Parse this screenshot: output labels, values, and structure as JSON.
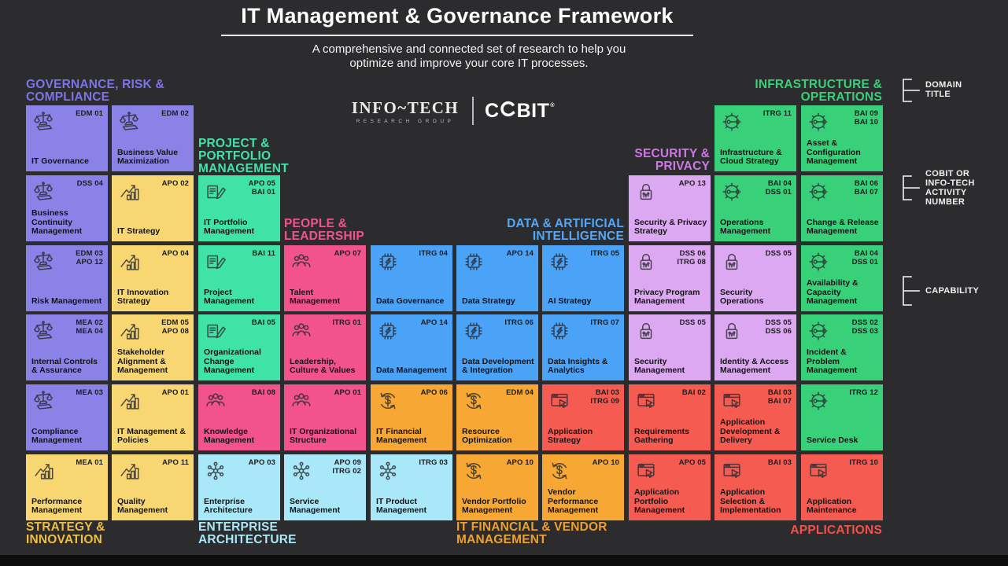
{
  "title": "IT Management & Governance Framework",
  "subtitle": "A comprehensive and connected set of research to help you\noptimize and improve your core IT processes.",
  "logos": {
    "infotech": "INFO~TECH",
    "infotech_sub": "RESEARCH GROUP",
    "cobit": "COBIT",
    "cobit_mark": "®"
  },
  "palette": {
    "grc": {
      "tile": "#8b82e8",
      "header": "#7f73e8"
    },
    "strategy": {
      "tile": "#f8d773",
      "header": "#eebf41"
    },
    "ppm": {
      "tile": "#3fe3a5",
      "header": "#3fe3a5"
    },
    "people": {
      "tile": "#f2538d",
      "header": "#f2538d"
    },
    "data": {
      "tile": "#4aa3f7",
      "header": "#54a8f7"
    },
    "security": {
      "tile": "#dda8f2",
      "header": "#cf77e6"
    },
    "infra": {
      "tile": "#38d078",
      "header": "#38d078"
    },
    "finvendor": {
      "tile": "#f7a733",
      "header": "#efa02a"
    },
    "apps": {
      "tile": "#f65b51",
      "header": "#f5504a"
    },
    "ea": {
      "tile": "#a9e8f8",
      "header": "#a9e8f8"
    }
  },
  "domains": [
    {
      "key": "grc",
      "label": "GOVERNANCE, RISK &\nCOMPLIANCE"
    },
    {
      "key": "ppm",
      "label": "PROJECT &\nPORTFOLIO\nMANAGEMENT"
    },
    {
      "key": "people",
      "label": "PEOPLE &\nLEADERSHIP"
    },
    {
      "key": "data",
      "label": "DATA & ARTIFICIAL\nINTELLIGENCE"
    },
    {
      "key": "security",
      "label": "SECURITY &\nPRIVACY"
    },
    {
      "key": "infra",
      "label": "INFRASTRUCTURE &\nOPERATIONS"
    },
    {
      "key": "strategy",
      "label": "STRATEGY &\nINNOVATION"
    },
    {
      "key": "ea",
      "label": "ENTERPRISE\nARCHITECTURE"
    },
    {
      "key": "finvendor",
      "label": "IT FINANCIAL & VENDOR\nMANAGEMENT"
    },
    {
      "key": "apps",
      "label": "APPLICATIONS"
    }
  ],
  "legend": [
    {
      "label": "DOMAIN\nTITLE"
    },
    {
      "label": "COBIT OR\nINFO-TECH\nACTIVITY\nNUMBER"
    },
    {
      "label": "CAPABILITY"
    }
  ],
  "tiles": [
    {
      "row": 1,
      "col": 1,
      "domain": "grc",
      "icon": "scales-icon",
      "numbers": [
        "EDM 01"
      ],
      "label": "IT Governance"
    },
    {
      "row": 1,
      "col": 2,
      "domain": "grc",
      "icon": "scales-icon",
      "numbers": [
        "EDM 02"
      ],
      "label": "Business Value Maximization"
    },
    {
      "row": 1,
      "col": 9,
      "domain": "infra",
      "icon": "gear-wrench-icon",
      "numbers": [
        "ITRG 11"
      ],
      "label": "Infrastructure & Cloud Strategy"
    },
    {
      "row": 1,
      "col": 10,
      "domain": "infra",
      "icon": "gear-wrench-icon",
      "numbers": [
        "BAI 09",
        "BAI 10"
      ],
      "label": "Asset & Configuration Management"
    },
    {
      "row": 2,
      "col": 1,
      "domain": "grc",
      "icon": "scales-icon",
      "numbers": [
        "DSS 04"
      ],
      "label": "Business Continuity Management"
    },
    {
      "row": 2,
      "col": 2,
      "domain": "strategy",
      "icon": "growth-chart-icon",
      "numbers": [
        "APO 02"
      ],
      "label": "IT Strategy"
    },
    {
      "row": 2,
      "col": 3,
      "domain": "ppm",
      "icon": "notebook-pencil-icon",
      "numbers": [
        "APO 05",
        "BAI 01"
      ],
      "label": "IT Portfolio Management"
    },
    {
      "row": 2,
      "col": 8,
      "domain": "security",
      "icon": "padlock-icon",
      "numbers": [
        "APO 13"
      ],
      "label": "Security & Privacy Strategy"
    },
    {
      "row": 2,
      "col": 9,
      "domain": "infra",
      "icon": "gear-wrench-icon",
      "numbers": [
        "BAI 04",
        "DSS 01"
      ],
      "label": "Operations Management"
    },
    {
      "row": 2,
      "col": 10,
      "domain": "infra",
      "icon": "gear-wrench-icon",
      "numbers": [
        "BAI 06",
        "BAI 07"
      ],
      "label": "Change & Release Management"
    },
    {
      "row": 3,
      "col": 1,
      "domain": "grc",
      "icon": "scales-icon",
      "numbers": [
        "EDM 03",
        "APO 12"
      ],
      "label": "Risk Management"
    },
    {
      "row": 3,
      "col": 2,
      "domain": "strategy",
      "icon": "growth-chart-icon",
      "numbers": [
        "APO 04"
      ],
      "label": "IT Innovation Strategy"
    },
    {
      "row": 3,
      "col": 3,
      "domain": "ppm",
      "icon": "notebook-pencil-icon",
      "numbers": [
        "BAI 11"
      ],
      "label": "Project Management"
    },
    {
      "row": 3,
      "col": 4,
      "domain": "people",
      "icon": "people-icon",
      "numbers": [
        "APO 07"
      ],
      "label": "Talent Management"
    },
    {
      "row": 3,
      "col": 5,
      "domain": "data",
      "icon": "chip-bolt-icon",
      "numbers": [
        "ITRG 04"
      ],
      "label": "Data Governance"
    },
    {
      "row": 3,
      "col": 6,
      "domain": "data",
      "icon": "chip-bolt-icon",
      "numbers": [
        "APO 14"
      ],
      "label": "Data Strategy"
    },
    {
      "row": 3,
      "col": 7,
      "domain": "data",
      "icon": "chip-bolt-icon",
      "numbers": [
        "ITRG 05"
      ],
      "label": "AI Strategy"
    },
    {
      "row": 3,
      "col": 8,
      "domain": "security",
      "icon": "padlock-icon",
      "numbers": [
        "DSS 06",
        "ITRG 08"
      ],
      "label": "Privacy Program Management"
    },
    {
      "row": 3,
      "col": 9,
      "domain": "security",
      "icon": "padlock-icon",
      "numbers": [
        "DSS 05"
      ],
      "label": "Security Operations"
    },
    {
      "row": 3,
      "col": 10,
      "domain": "infra",
      "icon": "gear-wrench-icon",
      "numbers": [
        "BAI 04",
        "DSS 01"
      ],
      "label": "Availability & Capacity Management"
    },
    {
      "row": 4,
      "col": 1,
      "domain": "grc",
      "icon": "scales-icon",
      "numbers": [
        "MEA 02",
        "MEA 04"
      ],
      "label": "Internal Controls & Assurance"
    },
    {
      "row": 4,
      "col": 2,
      "domain": "strategy",
      "icon": "growth-chart-icon",
      "numbers": [
        "EDM 05",
        "APO 08"
      ],
      "label": "Stakeholder Alignment & Management"
    },
    {
      "row": 4,
      "col": 3,
      "domain": "ppm",
      "icon": "notebook-pencil-icon",
      "numbers": [
        "BAI 05"
      ],
      "label": "Organizational Change Management"
    },
    {
      "row": 4,
      "col": 4,
      "domain": "people",
      "icon": "people-icon",
      "numbers": [
        "ITRG 01"
      ],
      "label": "Leadership, Culture & Values"
    },
    {
      "row": 4,
      "col": 5,
      "domain": "data",
      "icon": "chip-bolt-icon",
      "numbers": [
        "APO 14"
      ],
      "label": "Data Management"
    },
    {
      "row": 4,
      "col": 6,
      "domain": "data",
      "icon": "chip-bolt-icon",
      "numbers": [
        "ITRG 06"
      ],
      "label": "Data Development & Integration"
    },
    {
      "row": 4,
      "col": 7,
      "domain": "data",
      "icon": "chip-bolt-icon",
      "numbers": [
        "ITRG 07"
      ],
      "label": "Data Insights & Analytics"
    },
    {
      "row": 4,
      "col": 8,
      "domain": "security",
      "icon": "padlock-icon",
      "numbers": [
        "DSS 05"
      ],
      "label": "Security Management"
    },
    {
      "row": 4,
      "col": 9,
      "domain": "security",
      "icon": "padlock-icon",
      "numbers": [
        "DSS 05",
        "DSS 06"
      ],
      "label": "Identity & Access Management"
    },
    {
      "row": 4,
      "col": 10,
      "domain": "infra",
      "icon": "gear-wrench-icon",
      "numbers": [
        "DSS 02",
        "DSS 03"
      ],
      "label": "Incident & Problem Management"
    },
    {
      "row": 5,
      "col": 1,
      "domain": "grc",
      "icon": "scales-icon",
      "numbers": [
        "MEA 03"
      ],
      "label": "Compliance Management"
    },
    {
      "row": 5,
      "col": 2,
      "domain": "strategy",
      "icon": "growth-chart-icon",
      "numbers": [
        "APO 01"
      ],
      "label": "IT Management & Policies"
    },
    {
      "row": 5,
      "col": 3,
      "domain": "people",
      "icon": "people-icon",
      "numbers": [
        "BAI 08"
      ],
      "label": "Knowledge Management"
    },
    {
      "row": 5,
      "col": 4,
      "domain": "people",
      "icon": "people-icon",
      "numbers": [
        "APO 01"
      ],
      "label": "IT Organizational Structure"
    },
    {
      "row": 5,
      "col": 5,
      "domain": "finvendor",
      "icon": "dollar-cycle-icon",
      "numbers": [
        "APO 06"
      ],
      "label": "IT Financial Management"
    },
    {
      "row": 5,
      "col": 6,
      "domain": "finvendor",
      "icon": "dollar-cycle-icon",
      "numbers": [
        "EDM 04"
      ],
      "label": "Resource Optimization"
    },
    {
      "row": 5,
      "col": 7,
      "domain": "apps",
      "icon": "app-cursor-icon",
      "numbers": [
        "BAI 03",
        "ITRG 09"
      ],
      "label": "Application Strategy"
    },
    {
      "row": 5,
      "col": 8,
      "domain": "apps",
      "icon": "app-cursor-icon",
      "numbers": [
        "BAI 02"
      ],
      "label": "Requirements Gathering"
    },
    {
      "row": 5,
      "col": 9,
      "domain": "apps",
      "icon": "app-cursor-icon",
      "numbers": [
        "BAI 03",
        "BAI 07"
      ],
      "label": "Application Development & Delivery"
    },
    {
      "row": 5,
      "col": 10,
      "domain": "infra",
      "icon": "gear-wrench-icon",
      "numbers": [
        "ITRG 12"
      ],
      "label": "Service Desk"
    },
    {
      "row": 6,
      "col": 1,
      "domain": "strategy",
      "icon": "growth-chart-icon",
      "numbers": [
        "MEA 01"
      ],
      "label": "Performance Management"
    },
    {
      "row": 6,
      "col": 2,
      "domain": "strategy",
      "icon": "growth-chart-icon",
      "numbers": [
        "APO 11"
      ],
      "label": "Quality Management"
    },
    {
      "row": 6,
      "col": 3,
      "domain": "ea",
      "icon": "network-icon",
      "numbers": [
        "APO 03"
      ],
      "label": "Enterprise Architecture"
    },
    {
      "row": 6,
      "col": 4,
      "domain": "ea",
      "icon": "network-icon",
      "numbers": [
        "APO 09",
        "ITRG 02"
      ],
      "label": "Service Management"
    },
    {
      "row": 6,
      "col": 5,
      "domain": "ea",
      "icon": "network-icon",
      "numbers": [
        "ITRG 03"
      ],
      "label": "IT Product Management"
    },
    {
      "row": 6,
      "col": 6,
      "domain": "finvendor",
      "icon": "dollar-cycle-icon",
      "numbers": [
        "APO 10"
      ],
      "label": "Vendor Portfolio Management"
    },
    {
      "row": 6,
      "col": 7,
      "domain": "finvendor",
      "icon": "dollar-cycle-icon",
      "numbers": [
        "APO 10"
      ],
      "label": "Vendor Performance Management"
    },
    {
      "row": 6,
      "col": 8,
      "domain": "apps",
      "icon": "app-cursor-icon",
      "numbers": [
        "APO 05"
      ],
      "label": "Application Portfolio Management"
    },
    {
      "row": 6,
      "col": 9,
      "domain": "apps",
      "icon": "app-cursor-icon",
      "numbers": [
        "BAI 03"
      ],
      "label": "Application Selection & Implementation"
    },
    {
      "row": 6,
      "col": 10,
      "domain": "apps",
      "icon": "app-cursor-icon",
      "numbers": [
        "ITRG 10"
      ],
      "label": "Application Maintenance"
    }
  ]
}
